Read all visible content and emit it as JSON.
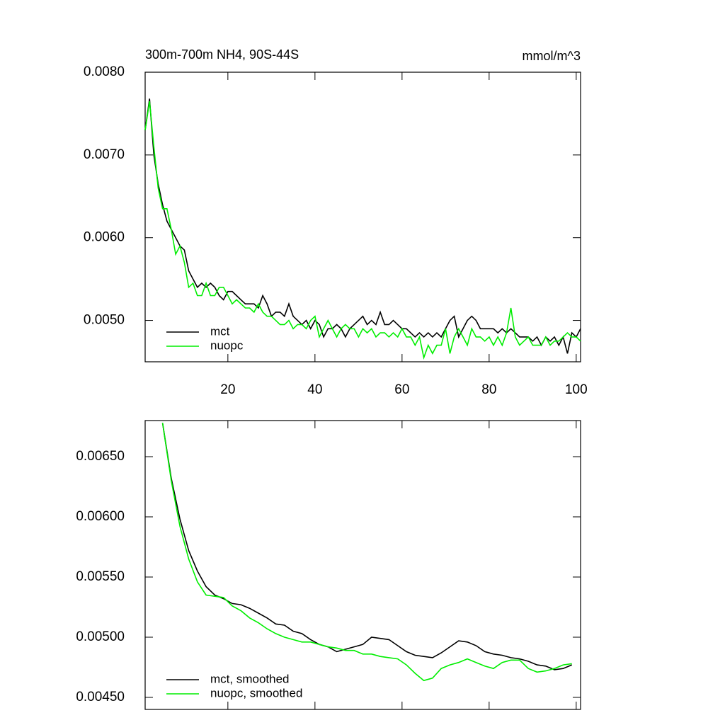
{
  "chart_data": [
    {
      "type": "line",
      "title": "300m-700m NH4, 90S-44S",
      "right_title": "mmol/m^3",
      "x": [
        1,
        2,
        3,
        4,
        5,
        6,
        7,
        8,
        9,
        10,
        11,
        12,
        13,
        14,
        15,
        16,
        17,
        18,
        19,
        20,
        21,
        22,
        23,
        24,
        25,
        26,
        27,
        28,
        29,
        30,
        31,
        32,
        33,
        34,
        35,
        36,
        37,
        38,
        39,
        40,
        41,
        42,
        43,
        44,
        45,
        46,
        47,
        48,
        49,
        50,
        51,
        52,
        53,
        54,
        55,
        56,
        57,
        58,
        59,
        60,
        61,
        62,
        63,
        64,
        65,
        66,
        67,
        68,
        69,
        70,
        71,
        72,
        73,
        74,
        75,
        76,
        77,
        78,
        79,
        80,
        81,
        82,
        83,
        84,
        85,
        86,
        87,
        88,
        89,
        90,
        91,
        92,
        93,
        94,
        95,
        96,
        97,
        98,
        99,
        100,
        101
      ],
      "series": [
        {
          "name": "mct",
          "color": "#000000",
          "values": [
            0.0073,
            0.00768,
            0.007,
            0.00665,
            0.0064,
            0.0062,
            0.0061,
            0.006,
            0.0059,
            0.00585,
            0.0056,
            0.0055,
            0.0054,
            0.00545,
            0.0054,
            0.00545,
            0.0054,
            0.0053,
            0.00525,
            0.00535,
            0.00535,
            0.0053,
            0.00525,
            0.0052,
            0.0052,
            0.0052,
            0.00515,
            0.0053,
            0.0052,
            0.00505,
            0.0051,
            0.0051,
            0.00505,
            0.0052,
            0.00505,
            0.005,
            0.00495,
            0.005,
            0.0049,
            0.005,
            0.00495,
            0.0048,
            0.0049,
            0.0049,
            0.00495,
            0.0049,
            0.0048,
            0.0049,
            0.00495,
            0.005,
            0.00505,
            0.00495,
            0.005,
            0.00495,
            0.0051,
            0.00495,
            0.00495,
            0.005,
            0.00495,
            0.0049,
            0.0049,
            0.00485,
            0.0048,
            0.00485,
            0.0048,
            0.00485,
            0.0048,
            0.00485,
            0.0048,
            0.0049,
            0.005,
            0.00505,
            0.0048,
            0.0049,
            0.005,
            0.00505,
            0.005,
            0.0049,
            0.0049,
            0.0049,
            0.0049,
            0.00485,
            0.0049,
            0.00485,
            0.0049,
            0.00485,
            0.0048,
            0.0048,
            0.0048,
            0.00475,
            0.0048,
            0.0047,
            0.0048,
            0.00475,
            0.0048,
            0.0047,
            0.0048,
            0.0046,
            0.00485,
            0.0048,
            0.0049
          ]
        },
        {
          "name": "nuopc",
          "color": "#00ee00",
          "values": [
            0.0073,
            0.00765,
            0.0071,
            0.0066,
            0.00635,
            0.00635,
            0.0061,
            0.0058,
            0.0059,
            0.0057,
            0.0054,
            0.00545,
            0.0053,
            0.0053,
            0.00545,
            0.0053,
            0.0053,
            0.0054,
            0.0054,
            0.0053,
            0.0052,
            0.00525,
            0.0052,
            0.00515,
            0.00515,
            0.0051,
            0.0052,
            0.0051,
            0.00505,
            0.00505,
            0.005,
            0.00495,
            0.00495,
            0.005,
            0.0049,
            0.00495,
            0.00495,
            0.0049,
            0.005,
            0.00505,
            0.0048,
            0.0049,
            0.005,
            0.0049,
            0.0048,
            0.0049,
            0.00495,
            0.0049,
            0.0049,
            0.0048,
            0.0049,
            0.00485,
            0.0049,
            0.0048,
            0.00485,
            0.00485,
            0.0048,
            0.00485,
            0.0048,
            0.0049,
            0.0048,
            0.0048,
            0.0047,
            0.0048,
            0.00455,
            0.0047,
            0.0046,
            0.0047,
            0.0047,
            0.0049,
            0.0046,
            0.0048,
            0.0049,
            0.0048,
            0.0047,
            0.0049,
            0.0048,
            0.0048,
            0.00475,
            0.0048,
            0.0047,
            0.0048,
            0.0047,
            0.00485,
            0.00515,
            0.0048,
            0.0047,
            0.00475,
            0.0048,
            0.0047,
            0.0047,
            0.0047,
            0.0048,
            0.0047,
            0.00475,
            0.00475,
            0.0048,
            0.00485,
            0.0048,
            0.0048,
            0.00475
          ]
        }
      ],
      "xlim": [
        1,
        101
      ],
      "xticks": [
        20,
        40,
        60,
        80,
        100
      ],
      "ylim": [
        0.0045,
        0.008
      ],
      "yticks": [
        {
          "value": 0.005,
          "label": "0.0050"
        },
        {
          "value": 0.006,
          "label": "0.0060"
        },
        {
          "value": 0.007,
          "label": "0.0070"
        },
        {
          "value": 0.008,
          "label": "0.0080"
        }
      ],
      "legend": "lower left"
    },
    {
      "type": "line",
      "x": [
        5,
        7,
        9,
        11,
        13,
        15,
        17,
        19,
        21,
        23,
        25,
        27,
        29,
        31,
        33,
        35,
        37,
        39,
        41,
        43,
        45,
        47,
        49,
        51,
        53,
        55,
        57,
        59,
        61,
        63,
        65,
        67,
        69,
        71,
        73,
        75,
        77,
        79,
        81,
        83,
        85,
        87,
        89,
        91,
        93,
        95,
        97,
        99
      ],
      "series": [
        {
          "name": "mct, smoothed",
          "color": "#000000",
          "values": [
            0.00678,
            0.00632,
            0.00598,
            0.00572,
            0.00555,
            0.00542,
            0.00535,
            0.00532,
            0.00528,
            0.00527,
            0.00524,
            0.0052,
            0.00516,
            0.00511,
            0.0051,
            0.00505,
            0.00503,
            0.00498,
            0.00494,
            0.00492,
            0.00488,
            0.0049,
            0.00492,
            0.00494,
            0.005,
            0.00499,
            0.00498,
            0.00493,
            0.00488,
            0.00485,
            0.00484,
            0.00483,
            0.00487,
            0.00492,
            0.00497,
            0.00496,
            0.00493,
            0.00488,
            0.00486,
            0.00485,
            0.00483,
            0.00482,
            0.0048,
            0.00477,
            0.00476,
            0.00473,
            0.00474,
            0.00477
          ]
        },
        {
          "name": "nuopc, smoothed",
          "color": "#00ee00",
          "values": [
            0.00678,
            0.0063,
            0.00592,
            0.00565,
            0.00546,
            0.00535,
            0.00534,
            0.00533,
            0.00526,
            0.00522,
            0.00516,
            0.00512,
            0.00507,
            0.00503,
            0.005,
            0.00498,
            0.00496,
            0.00496,
            0.00494,
            0.00492,
            0.00491,
            0.00489,
            0.00489,
            0.00486,
            0.00486,
            0.00484,
            0.00483,
            0.00482,
            0.00477,
            0.0047,
            0.00464,
            0.00466,
            0.00474,
            0.00477,
            0.00479,
            0.00482,
            0.00479,
            0.00476,
            0.00474,
            0.00479,
            0.00481,
            0.00481,
            0.00474,
            0.00471,
            0.00472,
            0.00474,
            0.00477,
            0.00478
          ]
        }
      ],
      "xlim": [
        1,
        101
      ],
      "ylim": [
        0.0044,
        0.0068
      ],
      "yticks": [
        {
          "value": 0.0045,
          "label": "0.00450"
        },
        {
          "value": 0.005,
          "label": "0.00500"
        },
        {
          "value": 0.0055,
          "label": "0.00550"
        },
        {
          "value": 0.006,
          "label": "0.00600"
        },
        {
          "value": 0.0065,
          "label": "0.00650"
        }
      ],
      "legend": "lower left"
    }
  ]
}
